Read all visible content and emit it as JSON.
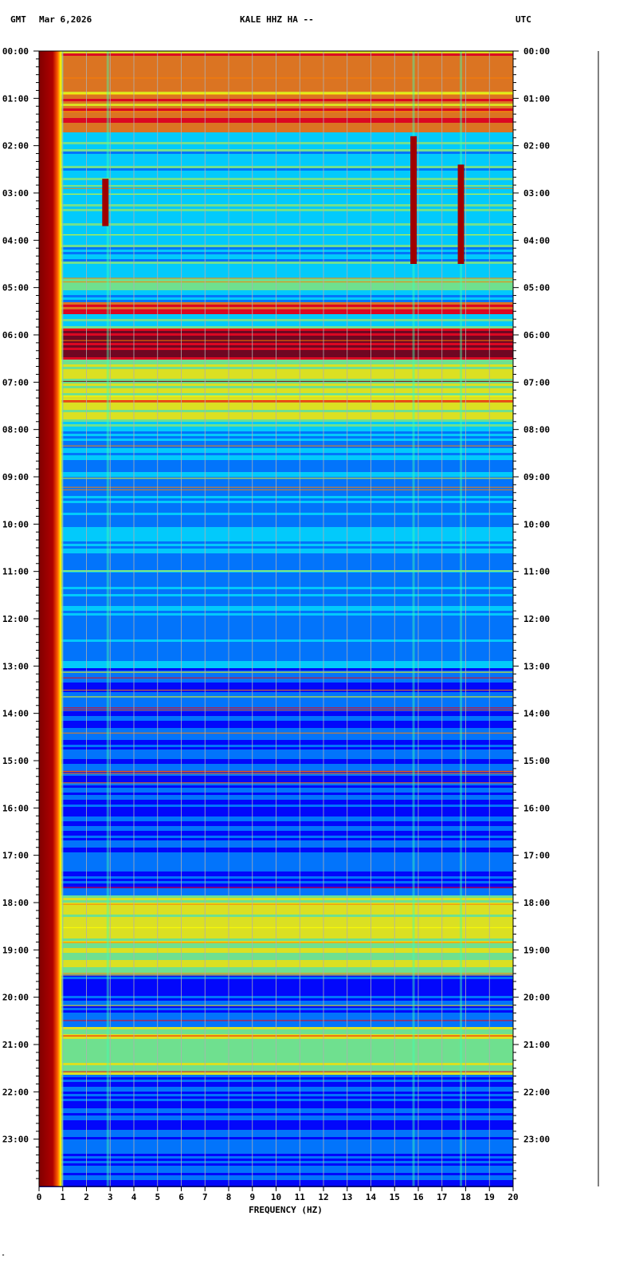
{
  "header": {
    "left_tz": "GMT",
    "date": "Mar 6,2026",
    "station": "KALE HHZ HA --",
    "right_tz": "UTC"
  },
  "chart_data": {
    "type": "heatmap",
    "title": "KALE HHZ HA --",
    "xlabel": "FREQUENCY (HZ)",
    "ylabel": "",
    "xlim": [
      0,
      20
    ],
    "ylim_hours": [
      0,
      24
    ],
    "x_ticks": [
      "0",
      "1",
      "2",
      "3",
      "4",
      "5",
      "6",
      "7",
      "8",
      "9",
      "10",
      "11",
      "12",
      "13",
      "14",
      "15",
      "16",
      "17",
      "18",
      "19",
      "20"
    ],
    "y_ticks": [
      "00:00",
      "01:00",
      "02:00",
      "03:00",
      "04:00",
      "05:00",
      "06:00",
      "07:00",
      "08:00",
      "09:00",
      "10:00",
      "11:00",
      "12:00",
      "13:00",
      "14:00",
      "15:00",
      "16:00",
      "17:00",
      "18:00",
      "19:00",
      "20:00",
      "21:00",
      "22:00",
      "23:00"
    ],
    "grid": true,
    "colormap": [
      "#00008b",
      "#0000ff",
      "#0080ff",
      "#00e5ff",
      "#80ff80",
      "#ffff00",
      "#ff8000",
      "#ff0000",
      "#800000"
    ],
    "high_energy_bands_hours": [
      {
        "start": 0.0,
        "end": 1.7,
        "level": 0.75
      },
      {
        "start": 5.3,
        "end": 5.55,
        "level": 0.85
      },
      {
        "start": 5.85,
        "end": 6.5,
        "level": 0.95
      },
      {
        "start": 6.5,
        "end": 7.8,
        "level": 0.6
      },
      {
        "start": 17.8,
        "end": 19.5,
        "level": 0.6
      },
      {
        "start": 20.6,
        "end": 21.6,
        "level": 0.55
      }
    ],
    "low_frequency_saturation_hz": 0.8,
    "persistent_lines_hz": [
      2.9,
      15.8,
      17.8
    ],
    "strong_events": [
      {
        "freq_hz": 15.8,
        "start_hour": 1.8,
        "end_hour": 4.5
      },
      {
        "freq_hz": 17.8,
        "start_hour": 2.4,
        "end_hour": 4.5
      },
      {
        "freq_hz": 2.8,
        "start_hour": 2.7,
        "end_hour": 3.7
      }
    ]
  },
  "footer": {
    "corner_mark": "\""
  }
}
